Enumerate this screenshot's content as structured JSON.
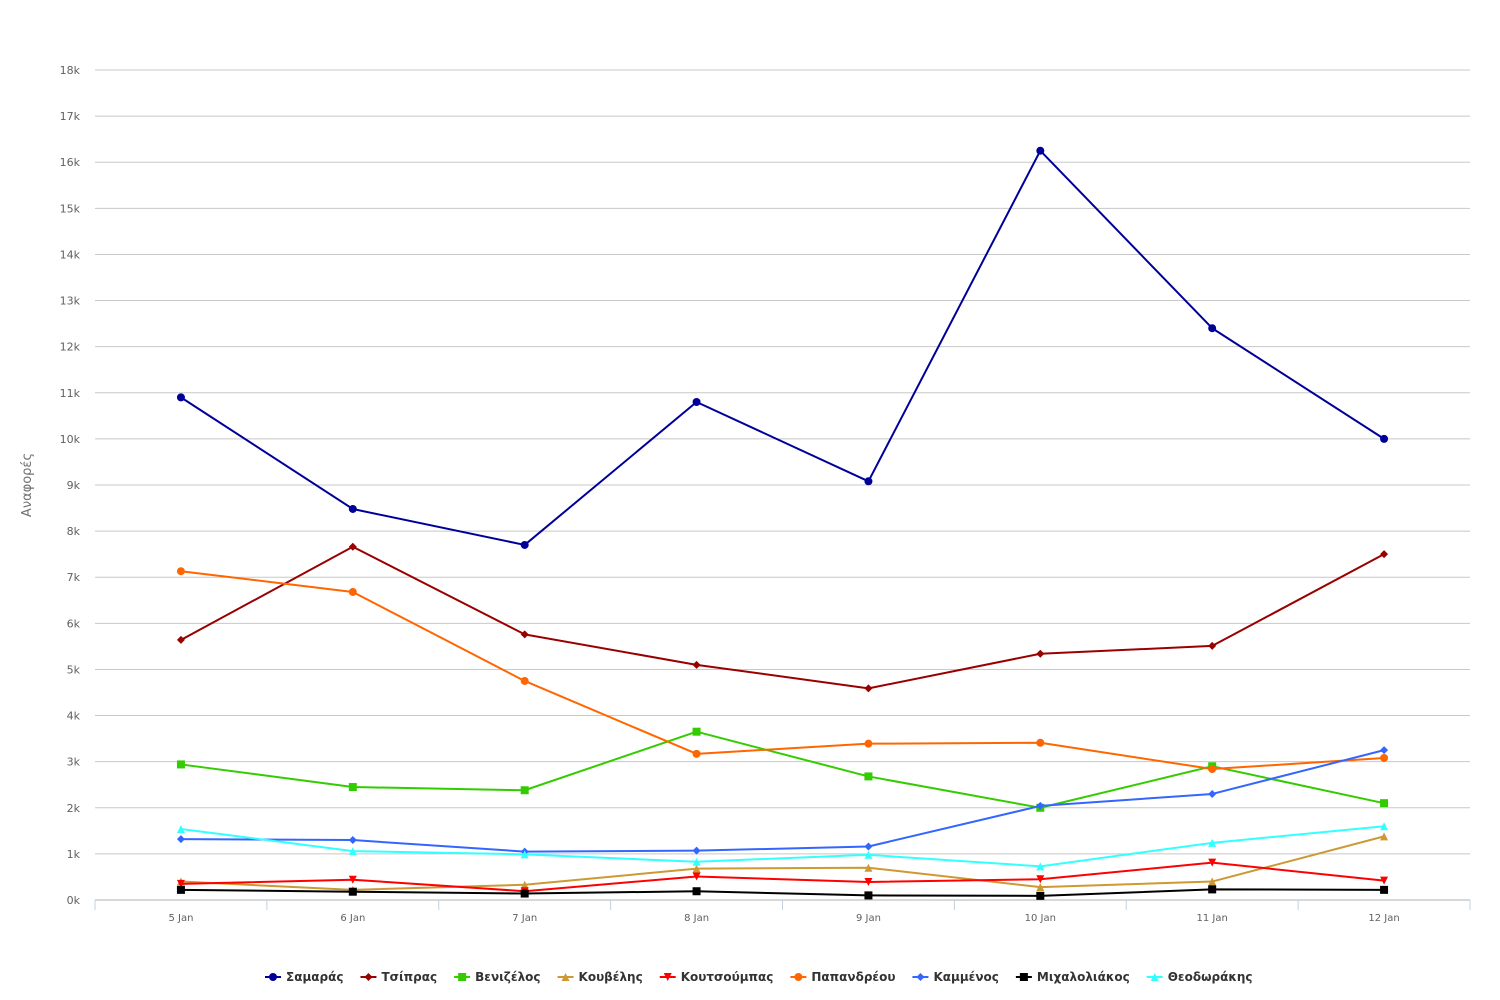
{
  "chart_data": {
    "type": "line",
    "title": "",
    "xlabel": "",
    "ylabel": "Αναφορές",
    "ylim": [
      0,
      18000
    ],
    "yticks": [
      0,
      1000,
      2000,
      3000,
      4000,
      5000,
      6000,
      7000,
      8000,
      9000,
      10000,
      11000,
      12000,
      13000,
      14000,
      15000,
      16000,
      17000,
      18000
    ],
    "ytick_labels": [
      "0k",
      "1k",
      "2k",
      "3k",
      "4k",
      "5k",
      "6k",
      "7k",
      "8k",
      "9k",
      "10k",
      "11k",
      "12k",
      "13k",
      "14k",
      "15k",
      "16k",
      "17k",
      "18k"
    ],
    "categories": [
      "5 Jan",
      "6 Jan",
      "7 Jan",
      "8 Jan",
      "9 Jan",
      "10 Jan",
      "11 Jan",
      "12 Jan"
    ],
    "grid": true,
    "legend_position": "bottom-center",
    "series": [
      {
        "name": "Σαμαράς",
        "color": "#000099",
        "marker": "circle",
        "values": [
          10900,
          8480,
          7700,
          10800,
          9080,
          16250,
          12400,
          10000
        ]
      },
      {
        "name": "Τσίπρας",
        "color": "#990000",
        "marker": "diamond",
        "values": [
          5640,
          7660,
          5760,
          5100,
          4590,
          5340,
          5510,
          7500
        ]
      },
      {
        "name": "Βενιζέλος",
        "color": "#33cc00",
        "marker": "square",
        "values": [
          2940,
          2450,
          2380,
          3650,
          2680,
          2000,
          2900,
          2100
        ]
      },
      {
        "name": "Κουβέλης",
        "color": "#cc9933",
        "marker": "triangle",
        "values": [
          400,
          220,
          330,
          680,
          700,
          280,
          400,
          1380
        ]
      },
      {
        "name": "Κουτσούμπας",
        "color": "#ff0000",
        "marker": "triangle-down",
        "values": [
          350,
          440,
          190,
          510,
          390,
          450,
          810,
          420
        ]
      },
      {
        "name": "Παπανδρέου",
        "color": "#ff6600",
        "marker": "circle",
        "values": [
          7130,
          6680,
          4750,
          3170,
          3390,
          3410,
          2840,
          3080
        ]
      },
      {
        "name": "Καμμένος",
        "color": "#3366ff",
        "marker": "diamond",
        "values": [
          1320,
          1300,
          1050,
          1070,
          1160,
          2040,
          2300,
          3250
        ]
      },
      {
        "name": "Μιχαλολιάκος",
        "color": "#000000",
        "marker": "square",
        "values": [
          220,
          180,
          140,
          190,
          100,
          90,
          230,
          220
        ]
      },
      {
        "name": "Θεοδωράκης",
        "color": "#33ffff",
        "marker": "triangle",
        "values": [
          1540,
          1060,
          990,
          830,
          980,
          730,
          1240,
          1600
        ]
      }
    ]
  }
}
